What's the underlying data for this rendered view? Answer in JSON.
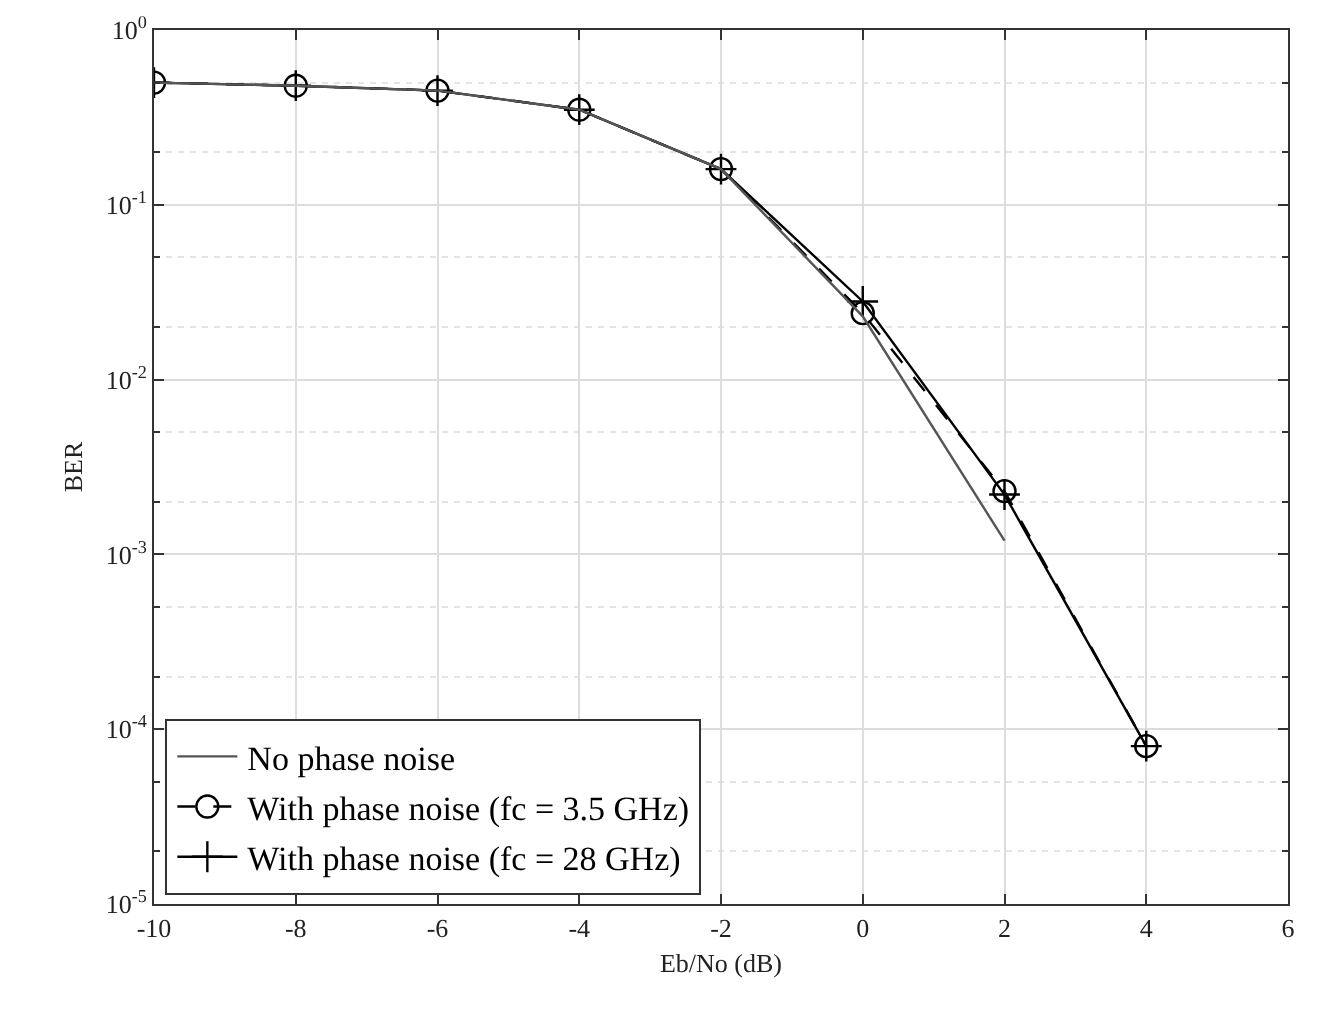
{
  "chart_data": {
    "type": "line",
    "xlabel": "Eb/No (dB)",
    "ylabel": "BER",
    "x": [
      -10,
      -8,
      -6,
      -4,
      -2,
      0,
      2,
      4
    ],
    "series": [
      {
        "name": "No phase noise",
        "color": "#555555",
        "line_style": "solid",
        "marker": "none",
        "x": [
          -10,
          -8,
          -6,
          -4,
          -2,
          0,
          2
        ],
        "values": [
          0.5,
          0.48,
          0.45,
          0.35,
          0.16,
          0.023,
          0.0012
        ]
      },
      {
        "name": "With phase noise (fc = 3.5 GHz)",
        "color": "#000000",
        "line_style": "dashed",
        "marker": "circle",
        "values": [
          0.5,
          0.48,
          0.45,
          0.35,
          0.16,
          0.024,
          0.0023,
          8e-05
        ]
      },
      {
        "name": "With phase noise (fc = 28 GHz)",
        "color": "#000000",
        "line_style": "solid",
        "marker": "cross",
        "values": [
          0.5,
          0.48,
          0.45,
          0.35,
          0.16,
          0.028,
          0.0022,
          8e-05
        ]
      }
    ],
    "log": "y",
    "xlim": [
      -10,
      6
    ],
    "xticks": [
      -10,
      -8,
      -6,
      -4,
      -2,
      0,
      2,
      4,
      6
    ],
    "ylim": [
      1e-05,
      1
    ],
    "yticks": [
      {
        "value": 1e-05,
        "label": "10$^{-5}$"
      },
      {
        "value": 0.0001,
        "label": "10$^{-4}$"
      },
      {
        "value": 0.001,
        "label": "10$^{-3}$"
      },
      {
        "value": 0.01,
        "label": "10$^{-2}$"
      },
      {
        "value": 0.1,
        "label": "10$^{-1}$"
      },
      {
        "value": 1,
        "label": "10$^{0}$"
      }
    ],
    "grid": true,
    "legend": "bottom left"
  }
}
